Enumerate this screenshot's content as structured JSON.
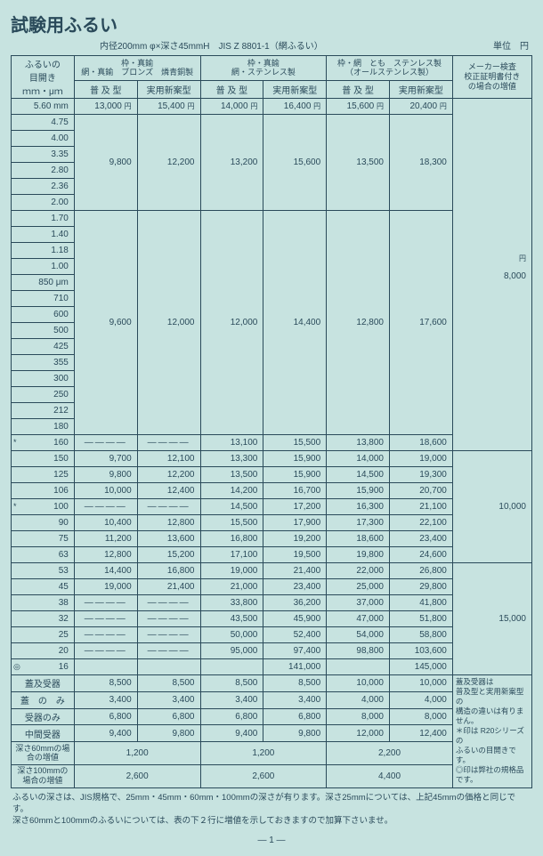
{
  "title": "試験用ふるい",
  "dim_spec": "内径200mm φ×深さ45mmH",
  "jis": "JIS Z 8801-1（網ふるい）",
  "unit": "単位　円",
  "yen_mark": "円",
  "header": {
    "mesh_l1": "ふるいの",
    "mesh_l2": "目開き",
    "mesh_l3": "ｍｍ・μｍ",
    "g1_l1": "枠・真鍮",
    "g1_l2": "網・真鍮　ブロンズ　燐青銅製",
    "g2_l1": "枠・真鍮",
    "g2_l2": "網・ステンレス製",
    "g3_l1": "枠・網　とも　ステンレス製",
    "g3_l2": "（オールステンレス製）",
    "sub_a": "普 及 型",
    "sub_b": "実用新案型",
    "extra_l1": "メーカー検査",
    "extra_l2": "校正証明書付き",
    "extra_l3": "の場合の増値"
  },
  "rows": [
    {
      "m": "5.60 mm",
      "a": "13,000",
      "b": "15,400",
      "c": "14,000",
      "d": "16,400",
      "e": "15,600",
      "f": "20,400"
    },
    {
      "m": "4.75"
    },
    {
      "m": "4.00"
    },
    {
      "m": "3.35"
    },
    {
      "m": "2.80"
    },
    {
      "m": "2.36"
    },
    {
      "m": "2.00"
    },
    {
      "m": "1.70"
    },
    {
      "m": "1.40"
    },
    {
      "m": "1.18"
    },
    {
      "m": "1.00"
    },
    {
      "m": "850 μm"
    },
    {
      "m": "710"
    },
    {
      "m": "600"
    },
    {
      "m": "500"
    },
    {
      "m": "425"
    },
    {
      "m": "355"
    },
    {
      "m": "300"
    },
    {
      "m": "250"
    },
    {
      "m": "212"
    },
    {
      "m": "180"
    },
    {
      "m": "160",
      "mk": "*",
      "dash_ab": true,
      "c": "13,100",
      "d": "15,500",
      "e": "13,800",
      "f": "18,600"
    },
    {
      "m": "150",
      "a": "9,700",
      "b": "12,100",
      "c": "13,300",
      "d": "15,900",
      "e": "14,000",
      "f": "19,000"
    },
    {
      "m": "125",
      "a": "9,800",
      "b": "12,200",
      "c": "13,500",
      "d": "15,900",
      "e": "14,500",
      "f": "19,300"
    },
    {
      "m": "106",
      "a": "10,000",
      "b": "12,400",
      "c": "14,200",
      "d": "16,700",
      "e": "15,900",
      "f": "20,700"
    },
    {
      "m": "100",
      "mk": "*",
      "dash_ab": true,
      "c": "14,500",
      "d": "17,200",
      "e": "16,300",
      "f": "21,100"
    },
    {
      "m": "90",
      "a": "10,400",
      "b": "12,800",
      "c": "15,500",
      "d": "17,900",
      "e": "17,300",
      "f": "22,100"
    },
    {
      "m": "75",
      "a": "11,200",
      "b": "13,600",
      "c": "16,800",
      "d": "19,200",
      "e": "18,600",
      "f": "23,400"
    },
    {
      "m": "63",
      "a": "12,800",
      "b": "15,200",
      "c": "17,100",
      "d": "19,500",
      "e": "19,800",
      "f": "24,600"
    },
    {
      "m": "53",
      "a": "14,400",
      "b": "16,800",
      "c": "19,000",
      "d": "21,400",
      "e": "22,000",
      "f": "26,800"
    },
    {
      "m": "45",
      "a": "19,000",
      "b": "21,400",
      "c": "21,000",
      "d": "23,400",
      "e": "25,000",
      "f": "29,800"
    },
    {
      "m": "38",
      "dash_ab": true,
      "c": "33,800",
      "d": "36,200",
      "e": "37,000",
      "f": "41,800"
    },
    {
      "m": "32",
      "dash_ab": true,
      "c": "43,500",
      "d": "45,900",
      "e": "47,000",
      "f": "51,800"
    },
    {
      "m": "25",
      "dash_ab": true,
      "c": "50,000",
      "d": "52,400",
      "e": "54,000",
      "f": "58,800"
    },
    {
      "m": "20",
      "dash_ab": true,
      "c": "95,000",
      "d": "97,400",
      "e": "98,800",
      "f": "103,600"
    },
    {
      "m": "16",
      "mk": "◎",
      "blank_ab": true,
      "blank_c": true,
      "d": "141,000",
      "blank_e": true,
      "f": "145,000"
    }
  ],
  "block1": {
    "a": "9,800",
    "b": "12,200",
    "c": "13,200",
    "d": "15,600",
    "e": "13,500",
    "f": "18,300"
  },
  "block2": {
    "a": "9,600",
    "b": "12,000",
    "c": "12,000",
    "d": "14,400",
    "e": "12,800",
    "f": "17,600"
  },
  "extra1": "8,000",
  "extra2": "10,000",
  "extra3": "15,000",
  "acc": [
    {
      "n": "蓋及受器",
      "a": "8,500",
      "b": "8,500",
      "c": "8,500",
      "d": "8,500",
      "e": "10,000",
      "f": "10,000"
    },
    {
      "n": "蓋　の　み",
      "a": "3,400",
      "b": "3,400",
      "c": "3,400",
      "d": "3,400",
      "e": "4,000",
      "f": "4,000"
    },
    {
      "n": "受器のみ",
      "a": "6,800",
      "b": "6,800",
      "c": "6,800",
      "d": "6,800",
      "e": "8,000",
      "f": "8,000"
    },
    {
      "n": "中間受器",
      "a": "9,400",
      "b": "9,800",
      "c": "9,400",
      "d": "9,800",
      "e": "12,000",
      "f": "12,400"
    }
  ],
  "depth": [
    {
      "n": "深さ60mmの場合の増値",
      "v1": "1,200",
      "v2": "1,200",
      "v3": "2,200"
    },
    {
      "n": "深さ100mmの場合の増値",
      "v1": "2,600",
      "v2": "2,600",
      "v3": "4,400"
    }
  ],
  "notes": [
    "蓋及受器は",
    "普及型と実用新案型の",
    "構造の違いは有りません。",
    "＊印は R20シリーズの",
    "ふるいの目開きです。",
    "◎印は弊社の規格品です。"
  ],
  "footer1": "ふるいの深さは、JIS規格で、25mm・45mm・60mm・100mmの深さが有ります。深さ25mmについては、上記45mmの価格と同じです。",
  "footer2": "深さ60mmと100mmのふるいについては、表の下２行に増値を示しておきますので加算下さいませ。",
  "page": "— 1 —",
  "dash": "————"
}
